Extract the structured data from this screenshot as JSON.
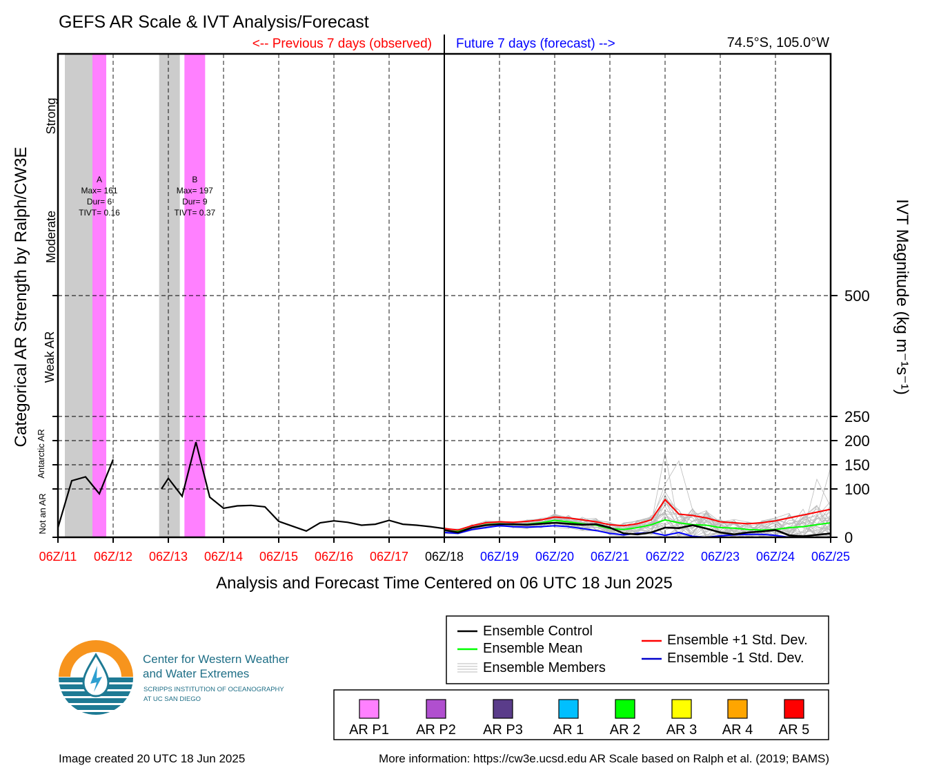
{
  "title": "GEFS AR Scale & IVT Analysis/Forecast",
  "previous_label": "<-- Previous 7 days (observed)",
  "future_label": "Future 7 days (forecast) -->",
  "location": "74.5°S, 105.0°W",
  "xlabel": "Analysis and Forecast Time Centered on 06 UTC 18 Jun 2025",
  "ylabel_left": "Categorical AR Strength by Ralph/CW3E",
  "ylabel_right": "IVT Magnitude (kg m⁻¹s⁻¹)",
  "category_labels": [
    "Strong",
    "Moderate",
    "Weak AR",
    "Antarctic AR",
    "Not an AR"
  ],
  "colors": {
    "observed": "#ff0000",
    "forecast_axis": "#0000ff",
    "ar_p1": "#ff80ff",
    "grey_band": "#cccccc",
    "control": "#000000",
    "mean": "#00ff00",
    "plus1": "#ff0000",
    "minus1": "#0000cc",
    "members": "#bbbbbb"
  },
  "chart_data": {
    "type": "line",
    "x_ticks": [
      "06Z/11",
      "06Z/12",
      "06Z/13",
      "06Z/14",
      "06Z/15",
      "06Z/16",
      "06Z/17",
      "06Z/18",
      "06Z/19",
      "06Z/20",
      "06Z/21",
      "06Z/22",
      "06Z/23",
      "06Z/24",
      "06Z/25"
    ],
    "x_tick_colors": [
      "red",
      "red",
      "red",
      "red",
      "red",
      "red",
      "red",
      "black",
      "blue",
      "blue",
      "blue",
      "blue",
      "blue",
      "blue",
      "blue"
    ],
    "x_unit": "hours since 06Z/11",
    "xlim": [
      0,
      336
    ],
    "y_ticks": [
      0,
      100,
      150,
      200,
      250,
      500
    ],
    "y_segments": [
      [
        0,
        100
      ],
      [
        100,
        150
      ],
      [
        150,
        200
      ],
      [
        200,
        250
      ],
      [
        250,
        500
      ],
      [
        500,
        1000
      ]
    ],
    "grid": true,
    "ar_events": [
      {
        "label": "A",
        "max": "Max= 161",
        "dur": "Dur= 6",
        "tivt": "TIVT= 0.16",
        "start": 15,
        "end": 21,
        "category": "AR P1"
      },
      {
        "label": "B",
        "max": "Max= 197",
        "dur": "Dur= 9",
        "tivt": "TIVT= 0.37",
        "start": 55,
        "end": 64,
        "category": "AR P1"
      }
    ],
    "grey_periods": [
      [
        3,
        15
      ],
      [
        44,
        53
      ]
    ],
    "observed": {
      "name": "Ensemble Control",
      "segments": [
        {
          "x": [
            0,
            6,
            12,
            18,
            24
          ],
          "y": [
            20,
            117,
            125,
            90,
            161
          ]
        },
        {
          "x": [
            45,
            48,
            54,
            60,
            66,
            72,
            78,
            84,
            90,
            96,
            102,
            108,
            114,
            120,
            126,
            132,
            138,
            144,
            150,
            156,
            162,
            168
          ],
          "y": [
            100,
            122,
            85,
            197,
            83,
            60,
            65,
            66,
            63,
            33,
            23,
            13,
            30,
            34,
            31,
            25,
            27,
            35,
            27,
            25,
            22,
            18
          ]
        }
      ]
    },
    "forecast": {
      "x": [
        168,
        174,
        180,
        186,
        192,
        198,
        204,
        210,
        216,
        222,
        228,
        234,
        240,
        246,
        252,
        258,
        264,
        270,
        276,
        282,
        288,
        294,
        300,
        306,
        312,
        318,
        324,
        330,
        336
      ],
      "series": [
        {
          "name": "Ensemble Control",
          "color": "black",
          "values": [
            15,
            10,
            20,
            25,
            27,
            27,
            26,
            28,
            30,
            28,
            26,
            27,
            20,
            8,
            6,
            10,
            20,
            19,
            25,
            18,
            10,
            6,
            10,
            12,
            15,
            4,
            2,
            5,
            8
          ]
        },
        {
          "name": "Ensemble Mean",
          "color": "lime",
          "values": [
            14,
            12,
            20,
            26,
            28,
            26,
            27,
            30,
            35,
            32,
            28,
            25,
            18,
            16,
            20,
            26,
            36,
            30,
            26,
            25,
            20,
            19,
            16,
            15,
            16,
            20,
            22,
            26,
            30
          ]
        },
        {
          "name": "Ensemble +1 Std. Dev.",
          "color": "red",
          "values": [
            18,
            15,
            24,
            30,
            32,
            31,
            33,
            36,
            42,
            40,
            36,
            32,
            26,
            24,
            28,
            36,
            78,
            48,
            45,
            40,
            32,
            30,
            28,
            30,
            34,
            40,
            46,
            52,
            58
          ]
        },
        {
          "name": "Ensemble -1 Std. Dev.",
          "color": "blue",
          "values": [
            10,
            8,
            16,
            20,
            24,
            22,
            21,
            22,
            24,
            22,
            18,
            14,
            8,
            5,
            8,
            10,
            4,
            10,
            2,
            0,
            3,
            5,
            6,
            6,
            4,
            0,
            0,
            0,
            0
          ]
        }
      ]
    },
    "legend": {
      "lines": [
        "Ensemble Control",
        "Ensemble Mean",
        "Ensemble Members",
        "Ensemble +1 Std. Dev.",
        "Ensemble -1 Std. Dev."
      ],
      "ar_categories": [
        {
          "label": "AR P1",
          "color": "#ff80ff"
        },
        {
          "label": "AR P2",
          "color": "#b04fcf"
        },
        {
          "label": "AR P3",
          "color": "#5a3c8a"
        },
        {
          "label": "AR 1",
          "color": "#00bfff"
        },
        {
          "label": "AR 2",
          "color": "#00ff00"
        },
        {
          "label": "AR 3",
          "color": "#ffff00"
        },
        {
          "label": "AR 4",
          "color": "#ffa500"
        },
        {
          "label": "AR 5",
          "color": "#ff0000"
        }
      ]
    }
  },
  "logo": {
    "line1": "Center for Western Weather",
    "line2": "and Water Extremes",
    "line3": "SCRIPPS INSTITUTION OF OCEANOGRAPHY",
    "line4": "AT UC SAN DIEGO"
  },
  "footer_left": "Image created 20 UTC 18 Jun 2025",
  "footer_right": "More information: https://cw3e.ucsd.edu AR Scale based on Ralph et al. (2019; BAMS)"
}
